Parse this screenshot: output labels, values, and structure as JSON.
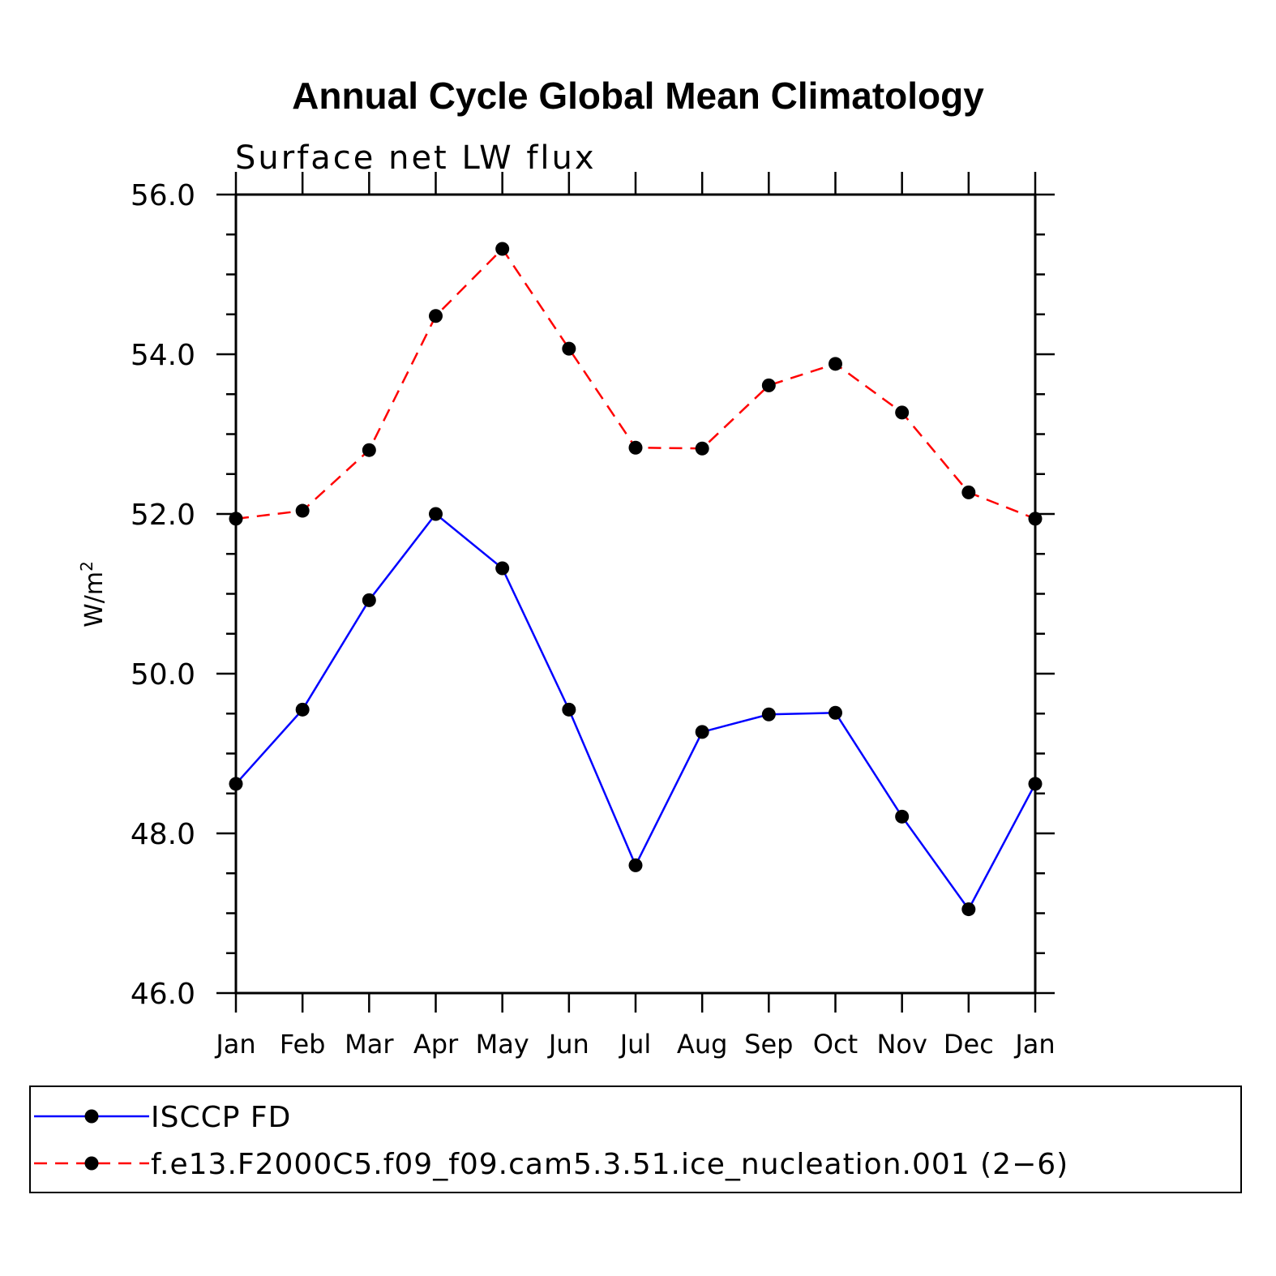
{
  "chart_data": {
    "type": "line",
    "title": "Annual Cycle Global Mean Climatology",
    "subtitle": "Surface net LW flux",
    "ylabel": "W/m",
    "ylabel_superscript": "2",
    "ylim": [
      46.0,
      56.0
    ],
    "yticks": [
      "46.0",
      "48.0",
      "50.0",
      "52.0",
      "54.0",
      "56.0"
    ],
    "categories": [
      "Jan",
      "Feb",
      "Mar",
      "Apr",
      "May",
      "Jun",
      "Jul",
      "Aug",
      "Sep",
      "Oct",
      "Nov",
      "Dec",
      "Jan"
    ],
    "series": [
      {
        "name": "ISCCP FD",
        "color": "#0000ff",
        "style": "solid",
        "values": [
          48.62,
          49.55,
          50.92,
          52.0,
          51.32,
          49.55,
          47.6,
          49.27,
          49.49,
          49.51,
          48.21,
          47.05,
          48.62
        ]
      },
      {
        "name": "f.e13.F2000C5.f09_f09.cam5.3.51.ice_nucleation.001 (2−6)",
        "color": "#ff0000",
        "style": "dashed",
        "values": [
          51.94,
          52.04,
          52.8,
          54.48,
          55.32,
          54.07,
          52.83,
          52.82,
          53.61,
          53.88,
          53.27,
          52.27,
          51.94
        ]
      }
    ],
    "legend_position": "bottom"
  }
}
